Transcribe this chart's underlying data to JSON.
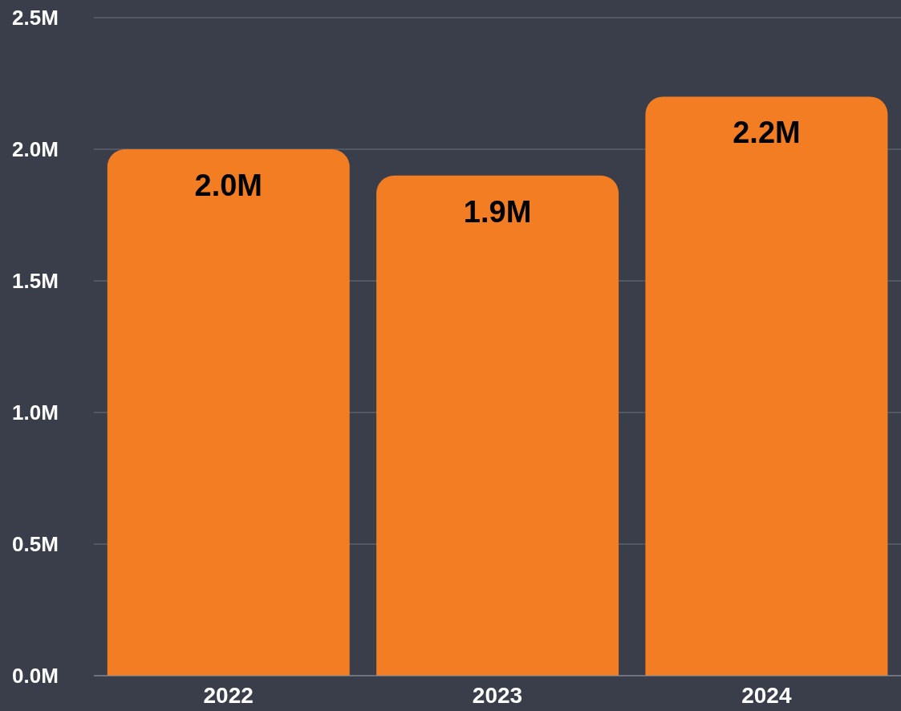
{
  "chart_data": {
    "type": "bar",
    "categories": [
      "2022",
      "2023",
      "2024"
    ],
    "values": [
      2000000,
      1900000,
      2200000
    ],
    "value_labels": [
      "2.0M",
      "1.9M",
      "2.2M"
    ],
    "color": "#f27d22",
    "ylim": [
      0,
      2500000
    ],
    "yticks": [
      {
        "value": 0,
        "label": "0.0M"
      },
      {
        "value": 500000,
        "label": "0.5M"
      },
      {
        "value": 1000000,
        "label": "1.0M"
      },
      {
        "value": 1500000,
        "label": "1.5M"
      },
      {
        "value": 2000000,
        "label": "2.0M"
      },
      {
        "value": 2500000,
        "label": "2.5M"
      }
    ],
    "grid": "y"
  }
}
